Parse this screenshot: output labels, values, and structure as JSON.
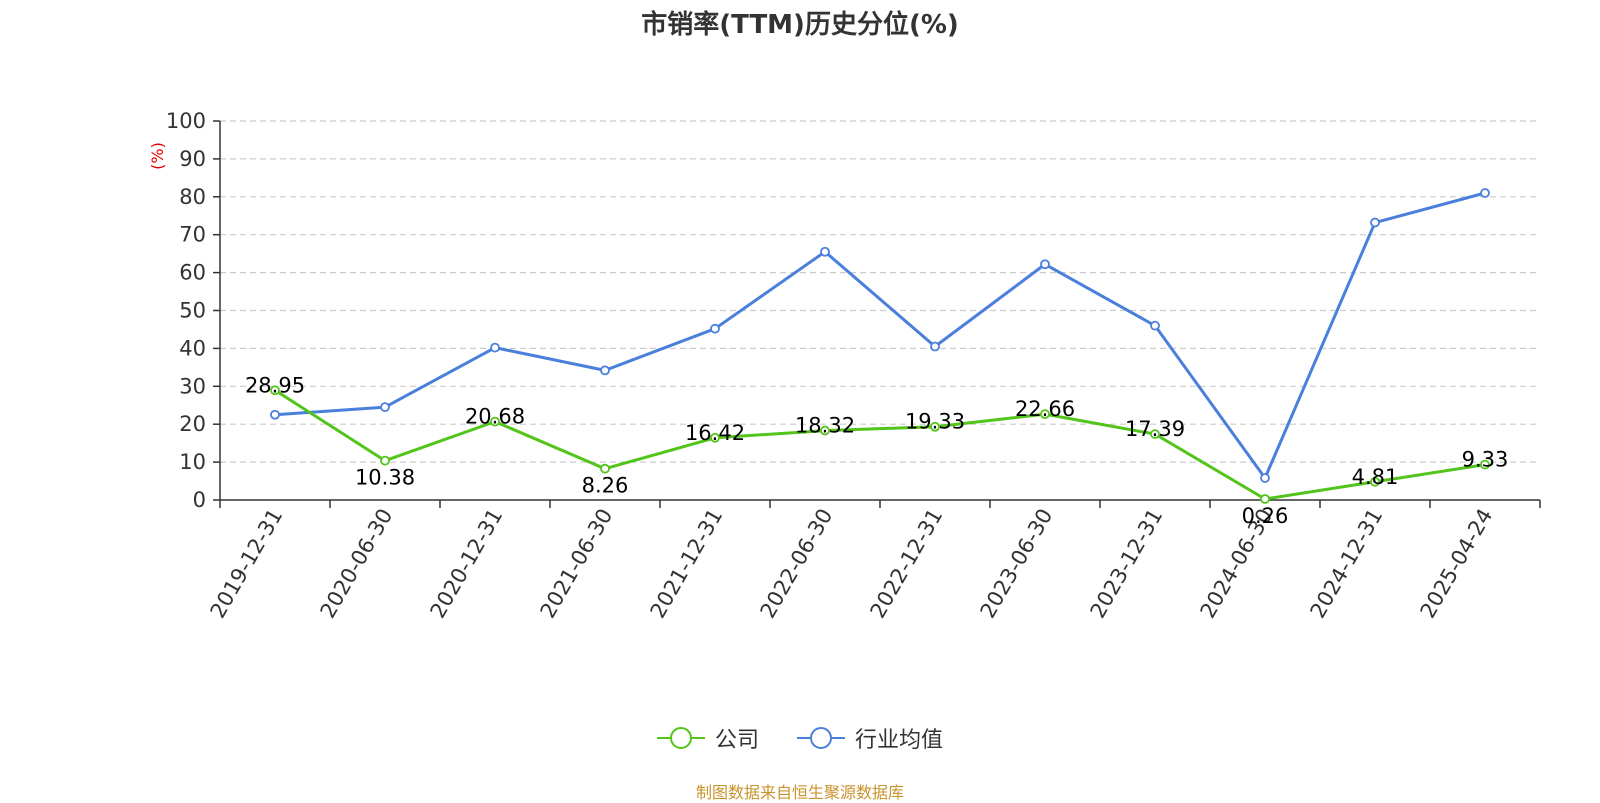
{
  "title": "市销率(TTM)历史分位(%)",
  "source_note": "制图数据来自恒生聚源数据库",
  "colors": {
    "company": "#52c41a",
    "industry": "#4a7fdc",
    "unit_label": "#e00000",
    "source": "#c8942b"
  },
  "chart_data": {
    "type": "line",
    "title": "市销率(TTM)历史分位(%)",
    "ylabel": "(%)",
    "xlabel": "",
    "ylim": [
      0,
      100
    ],
    "yticks": [
      0,
      10,
      20,
      30,
      40,
      50,
      60,
      70,
      80,
      90,
      100
    ],
    "grid": true,
    "legend_position": "bottom",
    "categories": [
      "2019-12-31",
      "2020-06-30",
      "2020-12-31",
      "2021-06-30",
      "2021-12-31",
      "2022-06-30",
      "2022-12-31",
      "2023-06-30",
      "2023-12-31",
      "2024-06-30",
      "2024-12-31",
      "2025-04-24"
    ],
    "series": [
      {
        "name": "公司",
        "color": "#52c41a",
        "show_labels": true,
        "values": [
          28.95,
          10.38,
          20.68,
          8.26,
          16.42,
          18.32,
          19.33,
          22.66,
          17.39,
          0.26,
          4.81,
          9.33
        ]
      },
      {
        "name": "行业均值",
        "color": "#4a7fdc",
        "show_labels": false,
        "values": [
          22.5,
          24.5,
          40.2,
          34.2,
          45.2,
          65.5,
          40.5,
          62.2,
          46.0,
          5.8,
          73.2,
          81.0
        ]
      }
    ]
  }
}
